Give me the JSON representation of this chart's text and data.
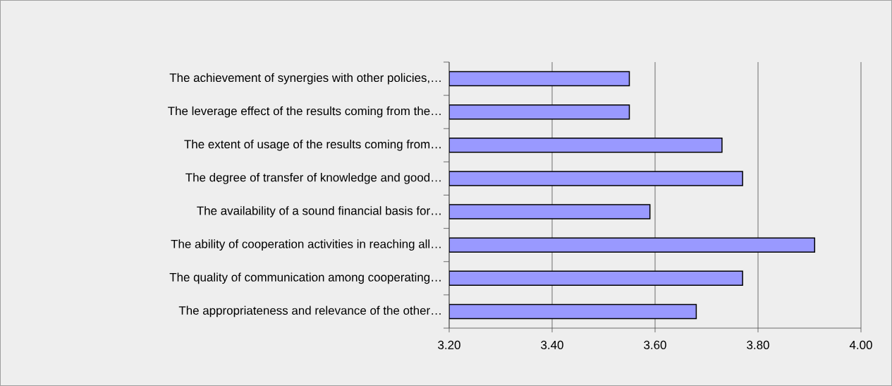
{
  "chart_data": {
    "type": "bar",
    "orientation": "horizontal",
    "categories": [
      "The achievement of synergies with other policies,…",
      "The leverage effect of the results coming from the…",
      "The extent of usage of the results coming from…",
      "The degree of transfer of knowledge and good…",
      "The availability of a sound financial basis for…",
      "The ability of cooperation activities in reaching all…",
      "The quality of communication among cooperating…",
      "The appropriateness and relevance of the other…"
    ],
    "values": [
      3.55,
      3.55,
      3.73,
      3.77,
      3.59,
      3.91,
      3.77,
      3.68
    ],
    "color": "#9999ff",
    "xlim": [
      3.2,
      4.0
    ],
    "xticks": [
      {
        "value": 3.2,
        "label": "3.20"
      },
      {
        "value": 3.4,
        "label": "3.40"
      },
      {
        "value": 3.6,
        "label": "3.60"
      },
      {
        "value": 3.8,
        "label": "3.80"
      },
      {
        "value": 4.0,
        "label": "4.00"
      }
    ],
    "grid": "x"
  }
}
